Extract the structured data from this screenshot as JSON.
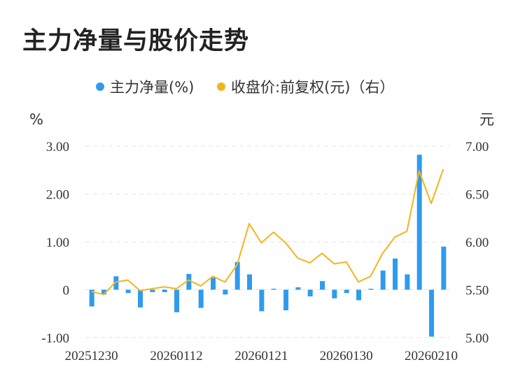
{
  "title": "主力净量与股价走势",
  "chart_data": {
    "type": "bar+line",
    "legend": [
      {
        "name": "主力净量(%)",
        "color": "#2e9bef"
      },
      {
        "name": "收盘价:前复权(元)（右）",
        "color": "#f5b41b"
      }
    ],
    "left_unit": "%",
    "right_unit": "元",
    "y_left_ticks": [
      "3.00",
      "2.00",
      "1.00",
      "0",
      "-1.00"
    ],
    "y_right_ticks": [
      "7.00",
      "6.50",
      "6.00",
      "5.50",
      "5.00"
    ],
    "y_left_range": [
      -1.0,
      3.0
    ],
    "y_right_range": [
      5.0,
      7.0
    ],
    "x_tick_labels": [
      "20251230",
      "20260112",
      "20260121",
      "20260130",
      "20260210"
    ],
    "x_tick_index": [
      0,
      7,
      14,
      21,
      28
    ],
    "grid": true,
    "series": [
      {
        "name": "主力净量(%)",
        "type": "bar",
        "color": "#2e9bef",
        "values": [
          -0.35,
          -0.1,
          0.28,
          -0.07,
          -0.37,
          -0.05,
          -0.05,
          -0.47,
          0.33,
          -0.38,
          0.25,
          -0.1,
          0.58,
          0.32,
          -0.45,
          0.02,
          -0.43,
          0.05,
          -0.14,
          0.18,
          -0.18,
          -0.07,
          -0.22,
          0.02,
          0.4,
          0.65,
          0.32,
          2.82,
          -0.98,
          0.9
        ]
      },
      {
        "name": "收盘价:前复权(元)（右）",
        "type": "line",
        "color": "#f5b41b",
        "values": [
          5.48,
          5.45,
          5.58,
          5.6,
          5.49,
          5.51,
          5.53,
          5.51,
          5.6,
          5.54,
          5.64,
          5.58,
          5.76,
          6.19,
          5.99,
          6.1,
          5.99,
          5.83,
          5.78,
          5.88,
          5.77,
          5.79,
          5.58,
          5.64,
          5.88,
          6.05,
          6.11,
          6.74,
          6.4,
          6.76
        ]
      }
    ]
  }
}
